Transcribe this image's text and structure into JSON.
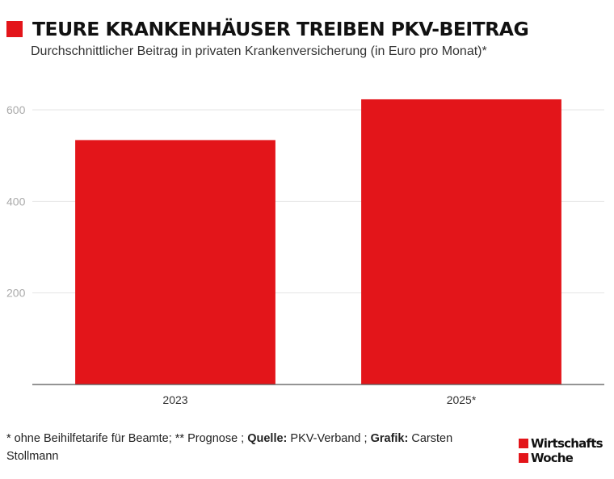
{
  "header": {
    "title": "TEURE KRANKENHÄUSER TREIBEN PKV-BEITRAG",
    "subtitle": "Durchschnittlicher Beitrag in privaten Krankenversicherung (in Euro pro Monat)*"
  },
  "colors": {
    "accent": "#e3151a",
    "grid": "#e6e6e6",
    "axis": "#555555",
    "tick_text": "#aaaaaa"
  },
  "chart_data": {
    "type": "bar",
    "categories": [
      "2023",
      "2025*"
    ],
    "values": [
      534,
      623
    ],
    "ylim": [
      0,
      700
    ],
    "yticks": [
      200,
      400,
      600
    ],
    "grid": true,
    "title": "TEURE KRANKENHÄUSER TREIBEN PKV-BEITRAG",
    "subtitle": "Durchschnittlicher Beitrag in privaten Krankenversicherung (in Euro pro Monat)*"
  },
  "footnote": {
    "note": "* ohne Beihilfetarife für Beamte; ** Prognose ; ",
    "source_label": "Quelle:",
    "source": " PKV-Verband ; ",
    "graphic_label": "Grafik:",
    "graphic": " Carsten Stollmann"
  },
  "logo": {
    "line1": "Wirtschafts",
    "line2": "Woche"
  }
}
